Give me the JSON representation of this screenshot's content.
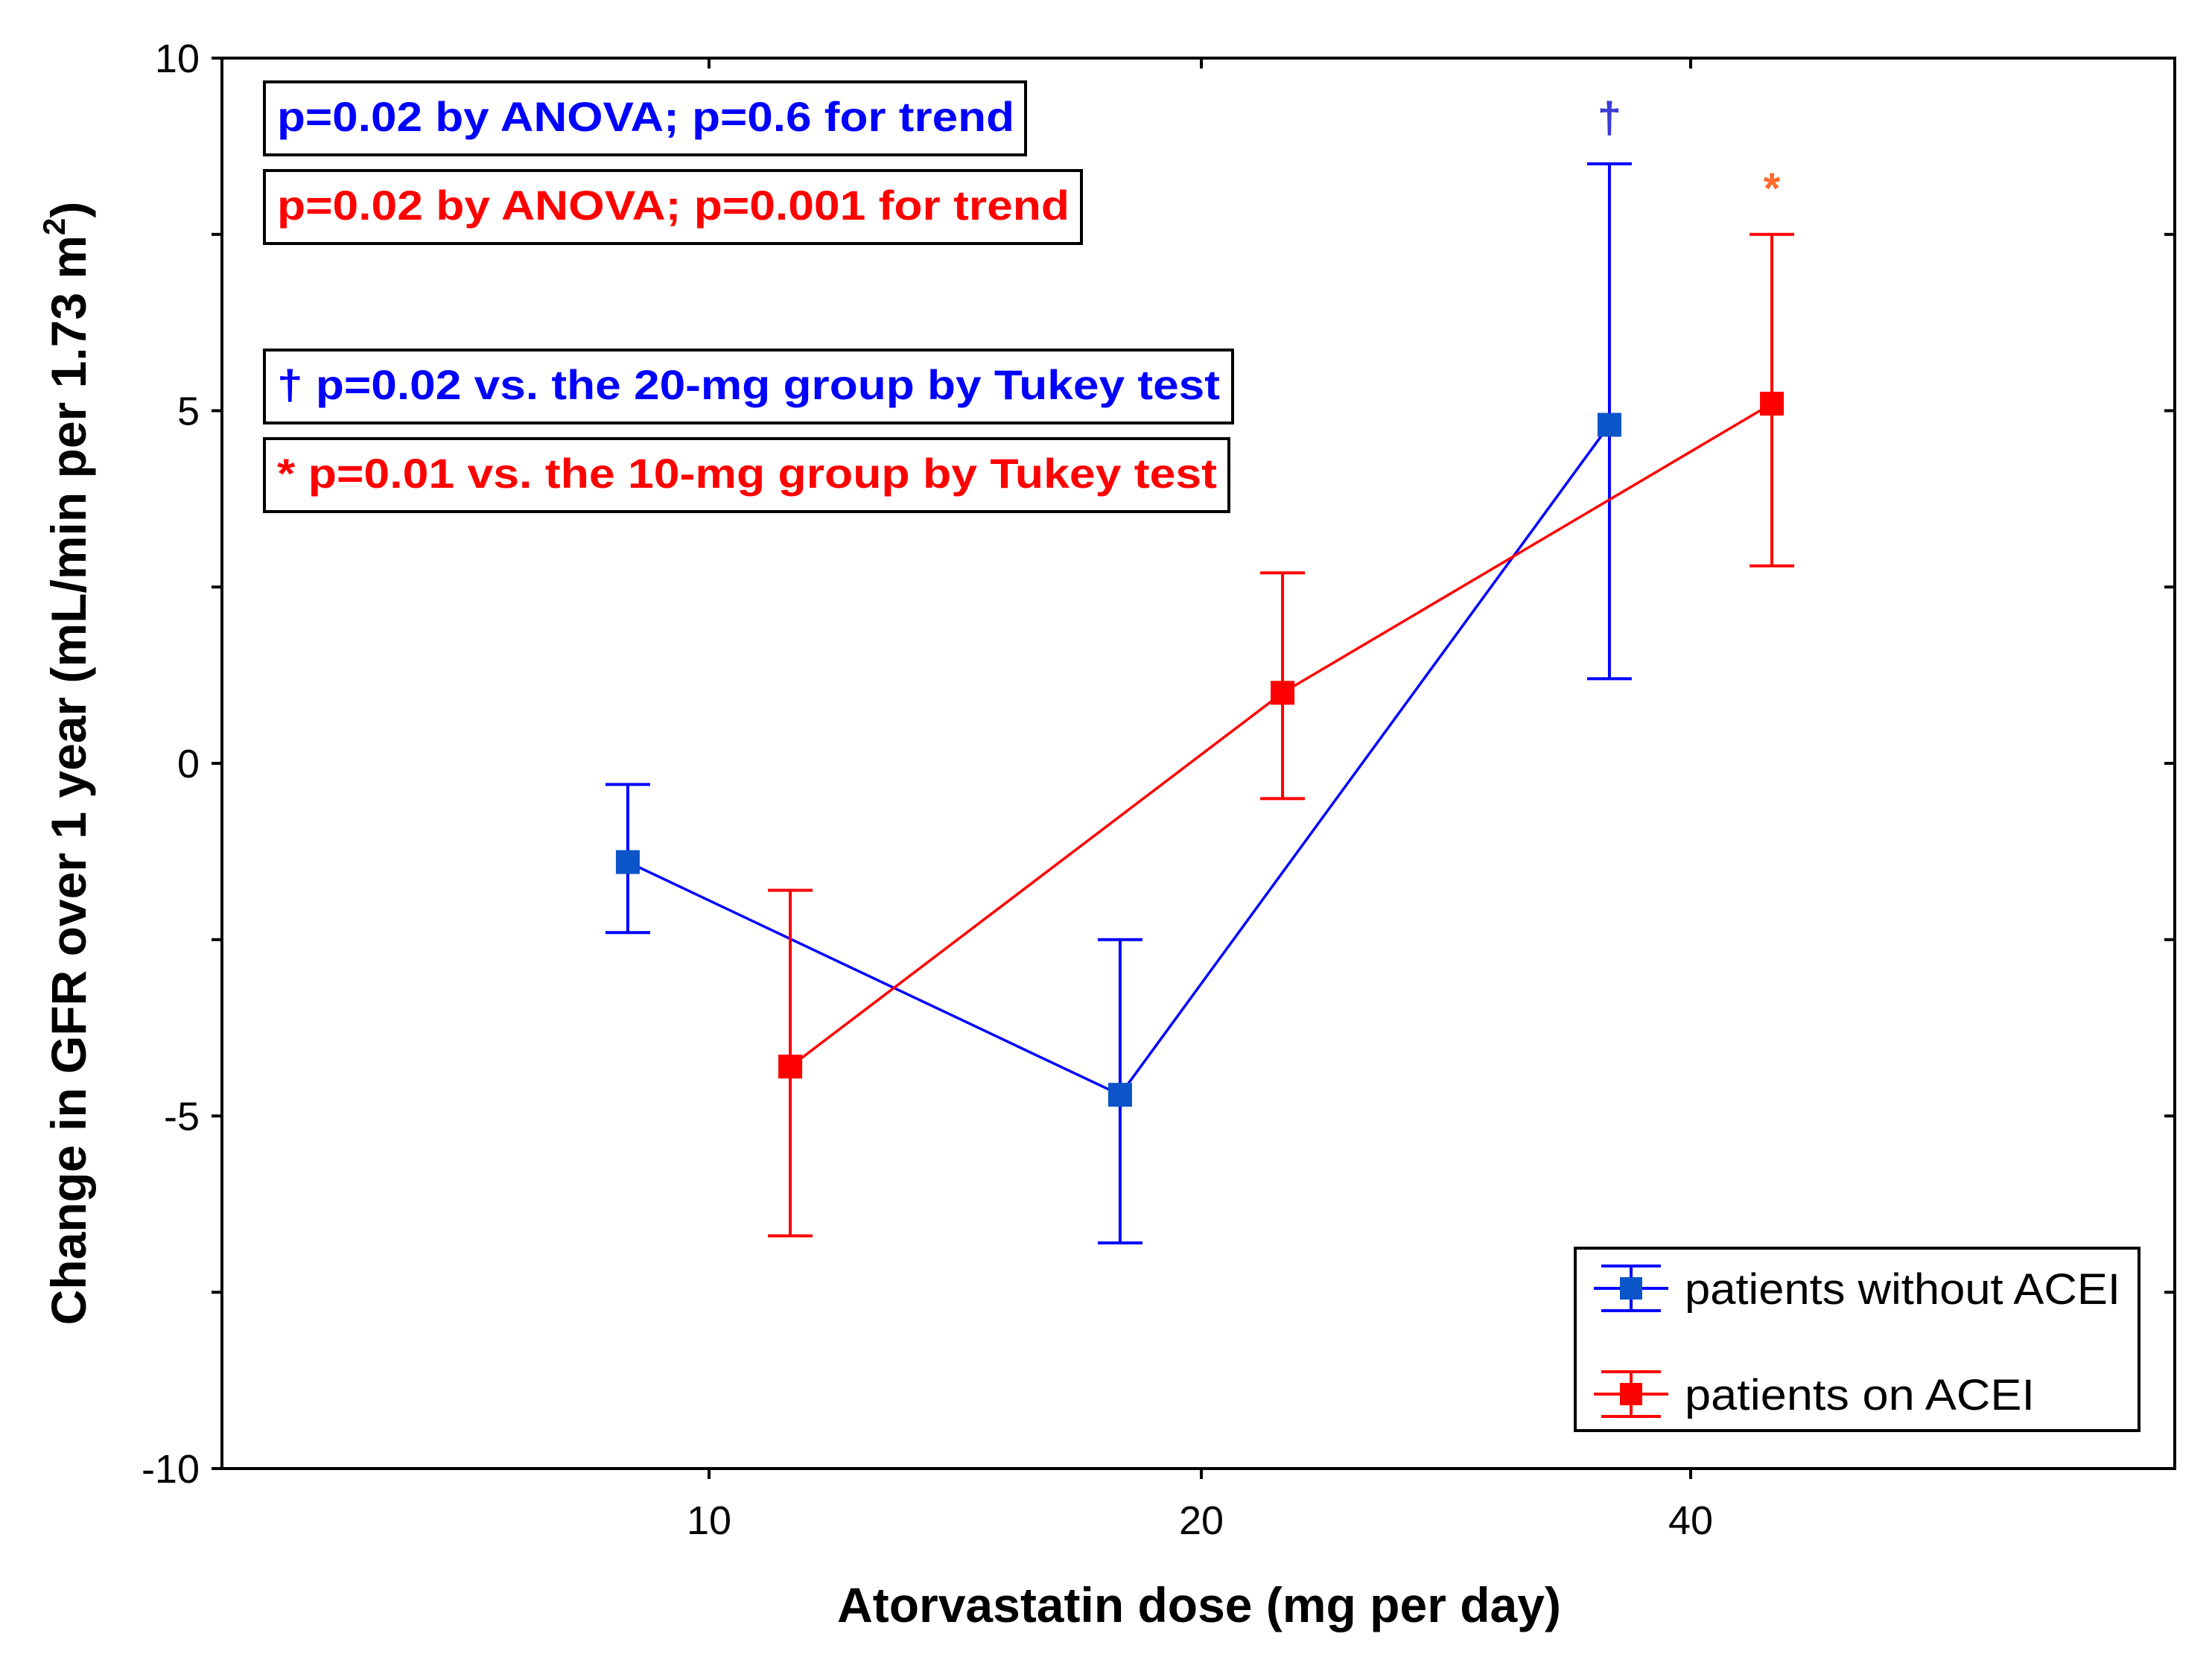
{
  "chart_data": {
    "type": "line",
    "xlabel": "Atorvastatin dose (mg per day)",
    "ylabel_main": "Change in GFR over 1 year (mL/min per 1.73 m",
    "ylabel_sup": "2",
    "ylabel_end": ")",
    "ylim": [
      -10,
      10
    ],
    "yticks": [
      10,
      5,
      0,
      -5,
      -10
    ],
    "yticks_labels": [
      "10",
      "5",
      "0",
      "-5",
      "-10"
    ],
    "categories": [
      "10",
      "20",
      "40"
    ],
    "series": [
      {
        "name": "patients without ACEI",
        "color": "#0000ff",
        "marker_color": "#0b55c8",
        "offset": -0.15,
        "values": [
          -1.4,
          -4.7,
          4.8
        ],
        "lower": [
          -2.4,
          -6.8,
          1.2
        ],
        "upper": [
          -0.3,
          -2.5,
          8.5
        ],
        "annotations": [
          "",
          "",
          "†"
        ]
      },
      {
        "name": "patients on ACEI",
        "color": "#ff0000",
        "marker_color": "#ff0000",
        "offset": 0.15,
        "values": [
          -4.3,
          1.0,
          5.1
        ],
        "lower": [
          -6.7,
          -0.5,
          2.8
        ],
        "upper": [
          -1.8,
          2.7,
          7.5
        ],
        "annotations": [
          "",
          "",
          "*"
        ]
      }
    ],
    "annotation_boxes": [
      {
        "text": "p=0.02 by ANOVA; p=0.6 for trend",
        "color": "#0000ff"
      },
      {
        "text": "p=0.02 by ANOVA; p=0.001 for trend",
        "color": "#ff0000"
      },
      {
        "text": "† p=0.02 vs. the 20-mg group by Tukey test",
        "color": "#0000ff"
      },
      {
        "text": "* p=0.01 vs. the 10-mg group by Tukey test",
        "color": "#ff0000"
      }
    ],
    "legend_position": "bottom-right"
  }
}
